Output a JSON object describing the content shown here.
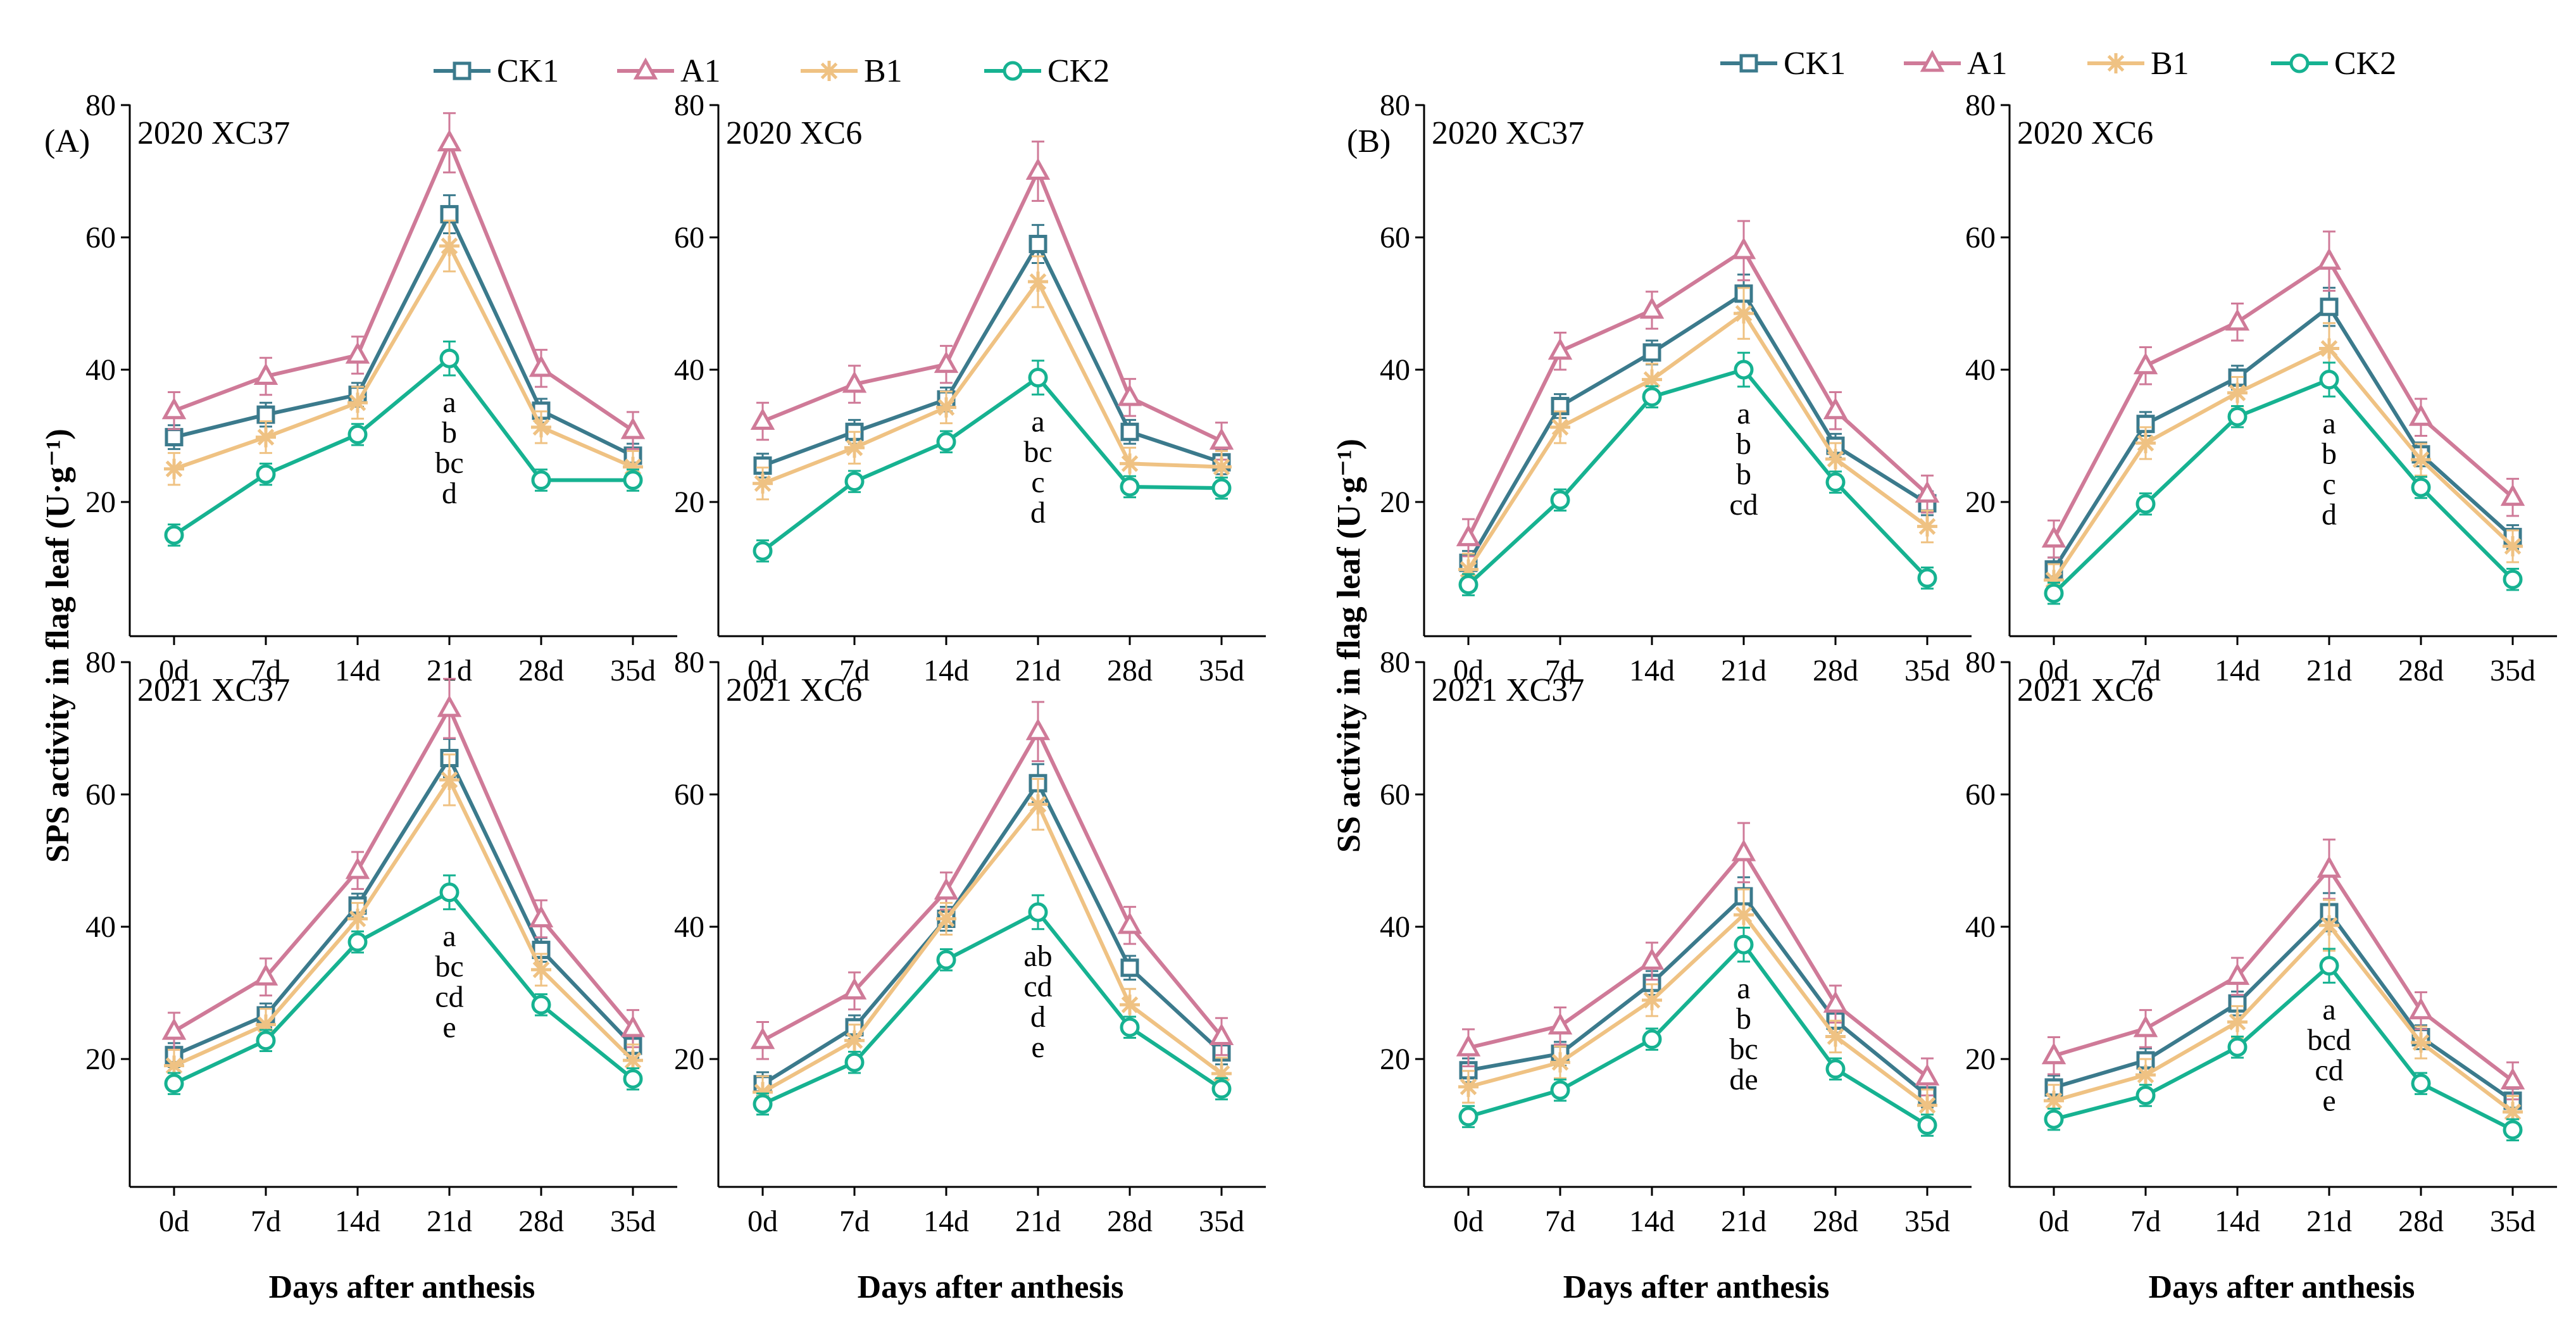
{
  "figure": {
    "section_labels": [
      "(A)",
      "(B)"
    ],
    "colors": {
      "CK1": "#3b7a8c",
      "A1": "#cf7a98",
      "B1": "#efc283",
      "CK2": "#16b291"
    }
  },
  "chart_data": [
    {
      "type": "line",
      "group": "A",
      "title": "2020  XC37",
      "categories": [
        "0d",
        "7d",
        "14d",
        "21d",
        "28d",
        "35d"
      ],
      "series": [
        {
          "name": "CK1",
          "values": [
            29.8,
            33.2,
            36.2,
            63.5,
            33.8,
            27.0
          ]
        },
        {
          "name": "A1",
          "values": [
            33.8,
            39.0,
            42.2,
            74.3,
            40.2,
            30.8
          ]
        },
        {
          "name": "B1",
          "values": [
            25.0,
            29.8,
            35.0,
            58.7,
            31.3,
            25.3
          ]
        },
        {
          "name": "CK2",
          "values": [
            15.0,
            24.2,
            30.2,
            41.7,
            23.3,
            23.3
          ]
        }
      ],
      "annotations": [
        "a",
        "b",
        "bc",
        "d"
      ],
      "ylabel": "SPS activity in flag leaf (U·g⁻¹)",
      "xlabel": "",
      "ylim": [
        0,
        80
      ],
      "yticks": [
        20,
        40,
        60,
        80
      ]
    },
    {
      "type": "line",
      "group": "A",
      "title": "2020  XC6",
      "categories": [
        "0d",
        "7d",
        "14d",
        "21d",
        "28d",
        "35d"
      ],
      "series": [
        {
          "name": "CK1",
          "values": [
            25.5,
            30.6,
            35.5,
            59.0,
            30.6,
            26.0
          ]
        },
        {
          "name": "A1",
          "values": [
            32.2,
            37.8,
            40.8,
            70.0,
            35.8,
            29.2
          ]
        },
        {
          "name": "B1",
          "values": [
            22.8,
            28.2,
            34.3,
            53.3,
            25.8,
            25.3
          ]
        },
        {
          "name": "CK2",
          "values": [
            12.6,
            23.1,
            29.1,
            38.8,
            22.3,
            22.1
          ]
        }
      ],
      "annotations": [
        "a",
        "bc",
        "c",
        "d"
      ],
      "ylabel": "",
      "xlabel": "",
      "ylim": [
        0,
        80
      ],
      "yticks": [
        20,
        40,
        60,
        80
      ]
    },
    {
      "type": "line",
      "group": "A",
      "title": "2021  XC37",
      "categories": [
        "0d",
        "7d",
        "14d",
        "21d",
        "28d",
        "35d"
      ],
      "series": [
        {
          "name": "CK1",
          "values": [
            20.6,
            26.6,
            43.2,
            65.5,
            36.5,
            22.0
          ]
        },
        {
          "name": "A1",
          "values": [
            24.2,
            32.4,
            48.5,
            73.0,
            41.2,
            24.6
          ]
        },
        {
          "name": "B1",
          "values": [
            19.0,
            25.2,
            41.2,
            62.2,
            33.5,
            19.8
          ]
        },
        {
          "name": "CK2",
          "values": [
            16.3,
            22.8,
            37.7,
            45.2,
            28.2,
            17.0
          ]
        }
      ],
      "annotations": [
        "a",
        "bc",
        "cd",
        "e"
      ],
      "ylabel": "",
      "xlabel": "Days after anthesis",
      "ylim": [
        0,
        80
      ],
      "yticks": [
        20,
        40,
        60,
        80
      ]
    },
    {
      "type": "line",
      "group": "A",
      "title": "2021  XC6",
      "categories": [
        "0d",
        "7d",
        "14d",
        "21d",
        "28d",
        "35d"
      ],
      "series": [
        {
          "name": "CK1",
          "values": [
            16.2,
            24.8,
            41.2,
            61.7,
            33.8,
            21.0
          ]
        },
        {
          "name": "A1",
          "values": [
            22.8,
            30.3,
            45.4,
            69.5,
            40.2,
            23.4
          ]
        },
        {
          "name": "B1",
          "values": [
            15.0,
            22.8,
            41.2,
            58.5,
            28.2,
            17.8
          ]
        },
        {
          "name": "CK2",
          "values": [
            13.2,
            19.5,
            35.0,
            42.2,
            24.8,
            15.5
          ]
        }
      ],
      "annotations": [
        "ab",
        "cd",
        "d",
        "e"
      ],
      "ylabel": "",
      "xlabel": "Days after anthesis",
      "ylim": [
        0,
        80
      ],
      "yticks": [
        20,
        40,
        60,
        80
      ]
    },
    {
      "type": "line",
      "group": "B",
      "title": "2020  XC37",
      "categories": [
        "0d",
        "7d",
        "14d",
        "21d",
        "28d",
        "35d"
      ],
      "series": [
        {
          "name": "CK1",
          "values": [
            10.8,
            34.5,
            42.6,
            51.5,
            28.5,
            19.8
          ]
        },
        {
          "name": "A1",
          "values": [
            14.6,
            42.8,
            49.0,
            58.0,
            33.8,
            21.2
          ]
        },
        {
          "name": "B1",
          "values": [
            9.8,
            31.3,
            38.5,
            48.5,
            26.5,
            16.3
          ]
        },
        {
          "name": "CK2",
          "values": [
            7.5,
            20.3,
            35.9,
            40.0,
            23.0,
            8.5
          ]
        }
      ],
      "annotations": [
        "a",
        "b",
        "b",
        "cd"
      ],
      "ylabel": "SS activity in flag leaf (U·g⁻¹)",
      "xlabel": "",
      "ylim": [
        0,
        80
      ],
      "yticks": [
        20,
        40,
        60,
        80
      ]
    },
    {
      "type": "line",
      "group": "B",
      "title": "2020  XC6",
      "categories": [
        "0d",
        "7d",
        "14d",
        "21d",
        "28d",
        "35d"
      ],
      "series": [
        {
          "name": "CK1",
          "values": [
            9.8,
            31.8,
            38.8,
            49.5,
            27.2,
            14.7
          ]
        },
        {
          "name": "A1",
          "values": [
            14.4,
            40.6,
            47.2,
            56.4,
            32.8,
            20.7
          ]
        },
        {
          "name": "B1",
          "values": [
            8.2,
            28.9,
            36.5,
            43.2,
            26.4,
            13.3
          ]
        },
        {
          "name": "CK2",
          "values": [
            6.2,
            19.7,
            32.9,
            38.5,
            22.2,
            8.3
          ]
        }
      ],
      "annotations": [
        "a",
        "b",
        "c",
        "d"
      ],
      "ylabel": "",
      "xlabel": "",
      "ylim": [
        0,
        80
      ],
      "yticks": [
        20,
        40,
        60,
        80
      ]
    },
    {
      "type": "line",
      "group": "B",
      "title": "2021  XC37",
      "categories": [
        "0d",
        "7d",
        "14d",
        "21d",
        "28d",
        "35d"
      ],
      "series": [
        {
          "name": "CK1",
          "values": [
            18.3,
            20.8,
            31.5,
            44.6,
            25.8,
            14.5
          ]
        },
        {
          "name": "A1",
          "values": [
            21.7,
            25.0,
            34.8,
            51.2,
            28.3,
            17.3
          ]
        },
        {
          "name": "B1",
          "values": [
            15.8,
            19.5,
            28.9,
            41.8,
            23.4,
            13.0
          ]
        },
        {
          "name": "CK2",
          "values": [
            11.3,
            15.3,
            23.0,
            37.3,
            18.5,
            10.0
          ]
        }
      ],
      "annotations": [
        "a",
        "b",
        "bc",
        "de"
      ],
      "ylabel": "",
      "xlabel": "Days after anthesis",
      "ylim": [
        0,
        80
      ],
      "yticks": [
        20,
        40,
        60,
        80
      ]
    },
    {
      "type": "line",
      "group": "B",
      "title": "2021  XC6",
      "categories": [
        "0d",
        "7d",
        "14d",
        "21d",
        "28d",
        "35d"
      ],
      "series": [
        {
          "name": "CK1",
          "values": [
            15.7,
            19.8,
            28.4,
            42.2,
            23.3,
            13.7
          ]
        },
        {
          "name": "A1",
          "values": [
            20.5,
            24.6,
            32.5,
            48.7,
            27.3,
            16.7
          ]
        },
        {
          "name": "B1",
          "values": [
            13.7,
            17.6,
            25.6,
            40.2,
            22.5,
            12.0
          ]
        },
        {
          "name": "CK2",
          "values": [
            10.9,
            14.5,
            21.8,
            34.1,
            16.3,
            9.3
          ]
        }
      ],
      "annotations": [
        "a",
        "bcd",
        "cd",
        "e"
      ],
      "ylabel": "",
      "xlabel": "Days after anthesis",
      "ylim": [
        0,
        80
      ],
      "yticks": [
        20,
        40,
        60,
        80
      ]
    }
  ]
}
